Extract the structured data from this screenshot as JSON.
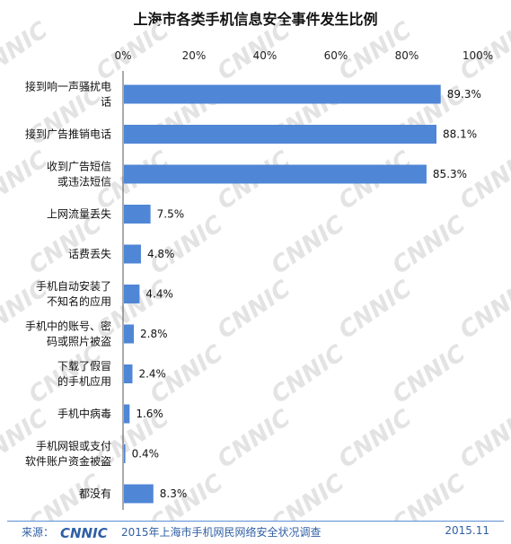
{
  "chart_data": {
    "type": "bar",
    "orientation": "horizontal",
    "title": "上海市各类手机信息安全事件发生比例",
    "xlim": [
      0,
      100
    ],
    "x_ticks": [
      "0%",
      "20%",
      "40%",
      "60%",
      "80%",
      "100%"
    ],
    "categories": [
      [
        "接到响一声骚扰电",
        "话"
      ],
      [
        "接到广告推销电话"
      ],
      [
        "收到广告短信",
        "或违法短信"
      ],
      [
        "上网流量丢失"
      ],
      [
        "话费丢失"
      ],
      [
        "手机自动安装了",
        "不知名的应用"
      ],
      [
        "手机中的账号、密",
        "码或照片被盗"
      ],
      [
        "下载了假冒",
        "的手机应用"
      ],
      [
        "手机中病毒"
      ],
      [
        "手机网银或支付",
        "软件账户资金被盗"
      ],
      [
        "都没有"
      ]
    ],
    "values": [
      89.3,
      88.1,
      85.3,
      7.5,
      4.8,
      4.4,
      2.8,
      2.4,
      1.6,
      0.4,
      8.3
    ],
    "value_labels": [
      "89.3%",
      "88.1%",
      "85.3%",
      "7.5%",
      "4.8%",
      "4.4%",
      "2.8%",
      "2.4%",
      "1.6%",
      "0.4%",
      "8.3%"
    ],
    "bar_color": "#4f86d6",
    "grid": false,
    "legend": "none"
  },
  "footer": {
    "source_label": "来源：",
    "logo_text": "CNNIC",
    "source_text": "2015年上海市手机网民网络安全状况调查",
    "date": "2015.11"
  },
  "watermark": {
    "text": "CNNIC"
  },
  "colors": {
    "accent": "#4f86d6",
    "footer_text": "#2f5fa5",
    "watermark": "#e3e3e3"
  }
}
